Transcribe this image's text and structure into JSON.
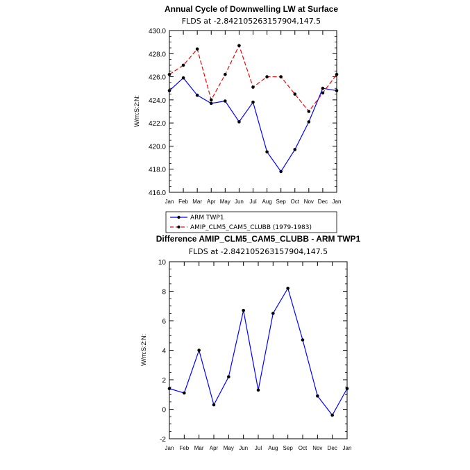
{
  "chart_data": [
    {
      "type": "line",
      "title": "Annual Cycle of Downwelling LW at Surface",
      "subtitle": "FLDS at -2.842105263157904,147.5",
      "ylabel": "W/m:S:2:N:",
      "xlabel": "",
      "categories": [
        "Jan",
        "Feb",
        "Mar",
        "Apr",
        "May",
        "Jun",
        "Jul",
        "Aug",
        "Sep",
        "Oct",
        "Nov",
        "Dec",
        "Jan"
      ],
      "ylim": [
        416.0,
        430.0
      ],
      "yticks": [
        "416.0",
        "418.0",
        "420.0",
        "422.0",
        "424.0",
        "426.0",
        "428.0",
        "430.0"
      ],
      "grid": false,
      "legend_position": "bottom-left",
      "series": [
        {
          "name": "ARM TWP1",
          "color": "#0000ff",
          "dash": "solid",
          "values": [
            424.8,
            425.9,
            424.4,
            423.7,
            423.9,
            422.1,
            423.8,
            419.5,
            417.8,
            419.7,
            422.1,
            425.0,
            424.8
          ]
        },
        {
          "name": "AMIP_CLM5_CAM5_CLUBB (1979-1983)",
          "color": "#ff0000",
          "dash": "dashed",
          "values": [
            426.2,
            427.0,
            428.4,
            424.0,
            426.2,
            428.7,
            425.1,
            426.0,
            426.0,
            424.5,
            423.0,
            424.6,
            426.2
          ]
        }
      ]
    },
    {
      "type": "line",
      "title": "Difference AMIP_CLM5_CAM5_CLUBB - ARM TWP1",
      "subtitle": "FLDS at -2.842105263157904,147.5",
      "ylabel": "W/m:S:2:N:",
      "xlabel": "",
      "categories": [
        "Jan",
        "Feb",
        "Mar",
        "Apr",
        "May",
        "Jun",
        "Jul",
        "Aug",
        "Sep",
        "Oct",
        "Nov",
        "Dec",
        "Jan"
      ],
      "ylim": [
        -2,
        10
      ],
      "yticks": [
        "-2",
        "0",
        "2",
        "4",
        "6",
        "8",
        "10"
      ],
      "grid": false,
      "series": [
        {
          "color": "#0000ff",
          "dash": "solid",
          "values": [
            1.4,
            1.1,
            4.0,
            0.3,
            2.2,
            6.7,
            1.3,
            6.5,
            8.2,
            4.7,
            0.9,
            -0.4,
            1.4
          ]
        }
      ]
    }
  ]
}
